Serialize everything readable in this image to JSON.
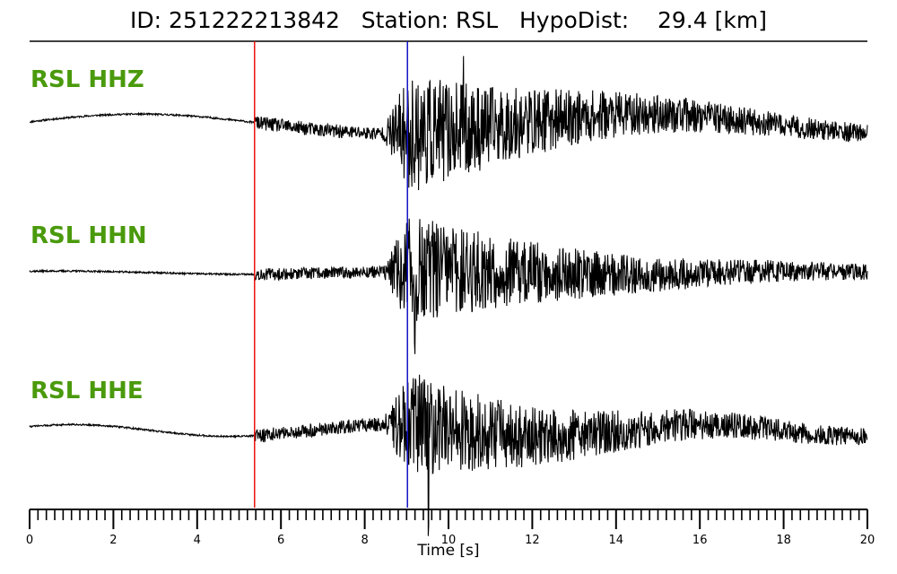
{
  "title": {
    "text": "ID: 251222213842   Station: RSL   HypoDist:    29.4 [km]"
  },
  "colors": {
    "label": "#4a9a0c",
    "trace": "#000000",
    "p_pick": "#e8120c",
    "s_pick": "#1414c8"
  },
  "chart_data": {
    "type": "line",
    "title": "ID: 251222213842   Station: RSL   HypoDist:    29.4 [km]",
    "xlabel": "Time [s]",
    "xlim": [
      0,
      20
    ],
    "xticks": [
      0,
      2,
      4,
      6,
      8,
      10,
      12,
      14,
      16,
      18,
      20
    ],
    "tick_labels": [
      "0",
      "2",
      "4",
      "6",
      "8",
      "10",
      "12",
      "14",
      "16",
      "18",
      "20"
    ],
    "minor_tick_step": 0.2,
    "grid": false,
    "picks": [
      {
        "phase": "P",
        "time": 5.37,
        "color": "#e8120c"
      },
      {
        "phase": "S",
        "time": 9.02,
        "color": "#1414c8"
      }
    ],
    "traces": [
      {
        "name": "RSL HHZ",
        "seed": 11,
        "lp_amp": 0.18,
        "lp_period": 12.0,
        "lp_phase": 0.2,
        "noise_amp": 0.08,
        "s_amp": 0.62,
        "spike_time": 10.35,
        "spike_amp": 1.25
      },
      {
        "name": "RSL HHN",
        "seed": 37,
        "lp_amp": 0.03,
        "lp_period": 9.0,
        "lp_phase": 1.1,
        "noise_amp": 0.07,
        "s_amp": 0.58,
        "spike_time": 9.2,
        "spike_amp": -0.95
      },
      {
        "name": "RSL HHE",
        "seed": 73,
        "lp_amp": 0.11,
        "lp_period": 7.5,
        "lp_phase": 0.7,
        "noise_amp": 0.08,
        "s_amp": 0.55,
        "spike_time": 9.52,
        "spike_amp": -1.15
      }
    ]
  }
}
